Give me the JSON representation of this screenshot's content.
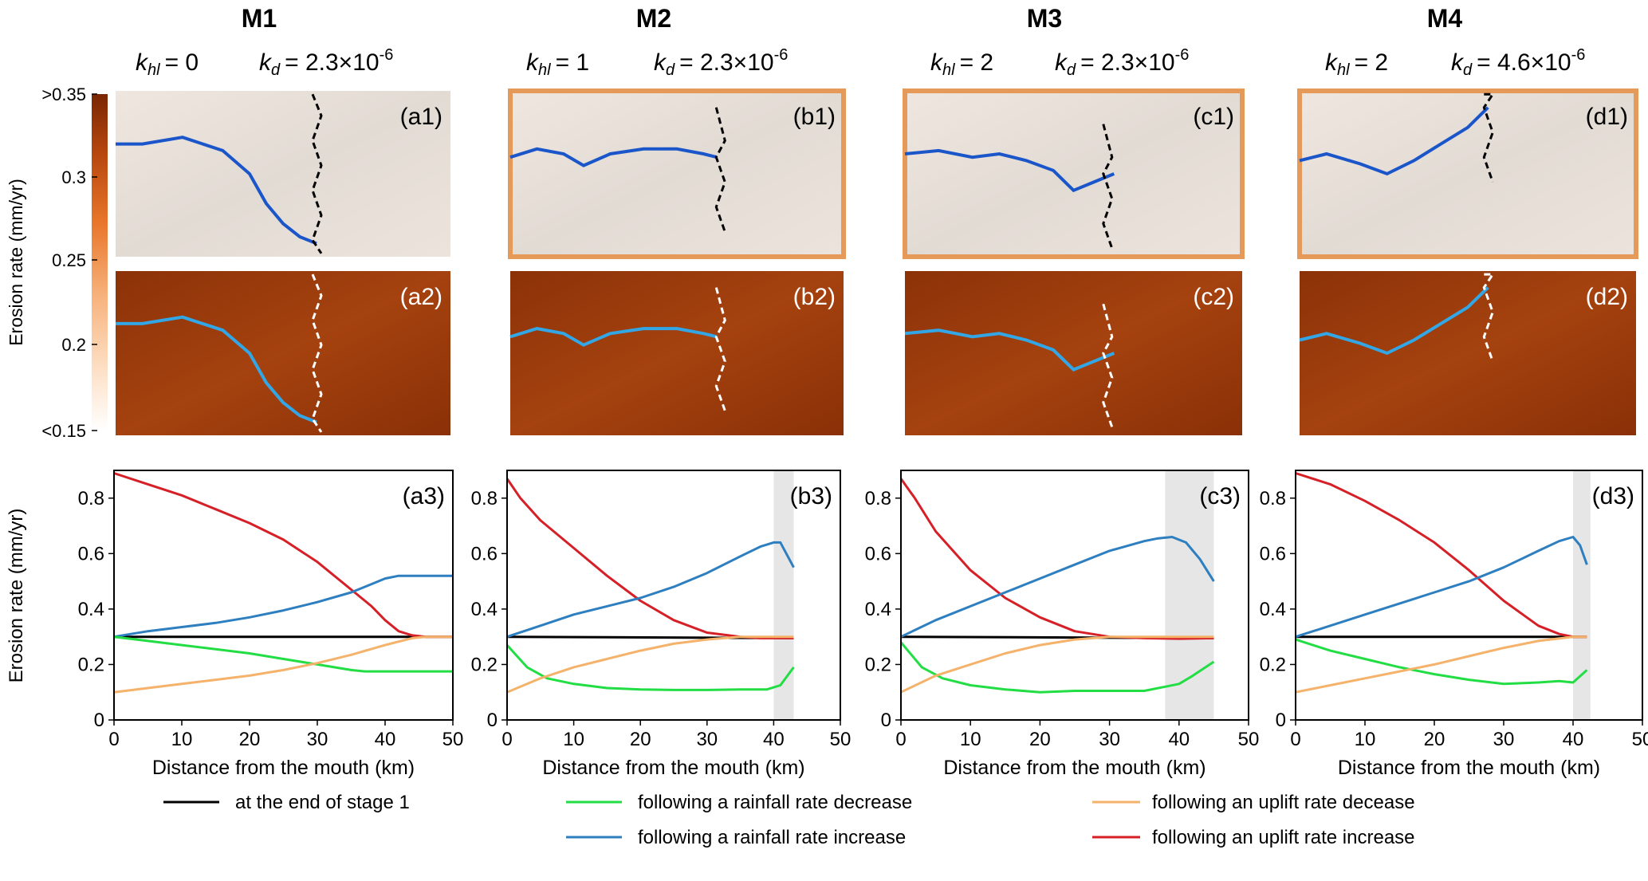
{
  "colorbar": {
    "label": "Erosion rate (mm/yr)",
    "ticks": [
      ">0.35",
      "0.3",
      "0.25",
      "0.2",
      "<0.15"
    ],
    "color_high": "#7a2604",
    "color_low": "#ffffff"
  },
  "models": [
    {
      "id": "M1",
      "khl_sym": "k",
      "khl_sub": "hl",
      "khl_val": "= 0",
      "kd_sym": "k",
      "kd_sub": "d",
      "kd_val": "= 2.3×10",
      "kd_exp": "-6",
      "labels": {
        "top": "(a1)",
        "mid": "(a2)",
        "bot": "(a3)"
      }
    },
    {
      "id": "M2",
      "khl_sym": "k",
      "khl_sub": "hl",
      "khl_val": "= 1",
      "kd_sym": "k",
      "kd_sub": "d",
      "kd_val": "= 2.3×10",
      "kd_exp": "-6",
      "labels": {
        "top": "(b1)",
        "mid": "(b2)",
        "bot": "(b3)"
      }
    },
    {
      "id": "M3",
      "khl_sym": "k",
      "khl_sub": "hl",
      "khl_val": "= 2",
      "kd_sym": "k",
      "kd_sub": "d",
      "kd_val": "= 2.3×10",
      "kd_exp": "-6",
      "labels": {
        "top": "(c1)",
        "mid": "(c2)",
        "bot": "(c3)"
      }
    },
    {
      "id": "M4",
      "khl_sym": "k",
      "khl_sub": "hl",
      "khl_val": "= 2",
      "kd_sym": "k",
      "kd_sub": "d",
      "kd_val": "= 4.6×10",
      "kd_exp": "-6",
      "labels": {
        "top": "(d1)",
        "mid": "(d2)",
        "bot": "(d3)"
      }
    }
  ],
  "legend": {
    "items": [
      {
        "key": "baseline",
        "label": "at the end of stage 1",
        "color": "#000000"
      },
      {
        "key": "rain_dec",
        "label": "following a rainfall rate decrease",
        "color": "#22dd44"
      },
      {
        "key": "uplift_dec",
        "label": "following an uplift rate decease",
        "color": "#f4b26b"
      },
      {
        "key": "rain_inc",
        "label": "following a rainfall rate increase",
        "color": "#2e7fc0"
      },
      {
        "key": "uplift_inc",
        "label": "following an uplift rate increase",
        "color": "#d62027"
      }
    ]
  },
  "chart_data": [
    {
      "type": "line",
      "panel": "(a3)",
      "xlabel": "Distance from the mouth (km)",
      "ylabel": "Erosion rate (mm/yr)",
      "xlim": [
        0,
        50
      ],
      "ylim": [
        0,
        0.9
      ],
      "xticks": [
        0,
        10,
        20,
        30,
        40,
        50
      ],
      "yticks": [
        0,
        0.2,
        0.4,
        0.6,
        0.8
      ],
      "shade": null,
      "series": [
        {
          "name": "at the end of stage 1",
          "color": "#000000",
          "x": [
            0,
            50
          ],
          "y": [
            0.3,
            0.3
          ]
        },
        {
          "name": "following an uplift rate increase",
          "color": "#d62027",
          "x": [
            0,
            5,
            10,
            15,
            20,
            25,
            30,
            35,
            38,
            40,
            42,
            44,
            46,
            50
          ],
          "y": [
            0.89,
            0.85,
            0.81,
            0.76,
            0.71,
            0.65,
            0.57,
            0.47,
            0.41,
            0.36,
            0.32,
            0.305,
            0.3,
            0.3
          ]
        },
        {
          "name": "following a rainfall rate increase",
          "color": "#2e7fc0",
          "x": [
            0,
            5,
            10,
            15,
            20,
            25,
            30,
            35,
            38,
            40,
            42,
            44,
            50
          ],
          "y": [
            0.3,
            0.32,
            0.335,
            0.35,
            0.37,
            0.395,
            0.425,
            0.46,
            0.49,
            0.51,
            0.52,
            0.52,
            0.52
          ]
        },
        {
          "name": "following a rainfall rate decrease",
          "color": "#22dd44",
          "x": [
            0,
            5,
            10,
            15,
            20,
            25,
            30,
            35,
            37,
            40,
            50
          ],
          "y": [
            0.3,
            0.285,
            0.27,
            0.255,
            0.24,
            0.22,
            0.2,
            0.18,
            0.175,
            0.175,
            0.175
          ]
        },
        {
          "name": "following an uplift rate decease",
          "color": "#f4b26b",
          "x": [
            0,
            5,
            10,
            15,
            20,
            25,
            30,
            35,
            40,
            44,
            46,
            50
          ],
          "y": [
            0.1,
            0.115,
            0.13,
            0.145,
            0.16,
            0.18,
            0.205,
            0.235,
            0.27,
            0.295,
            0.3,
            0.3
          ]
        }
      ]
    },
    {
      "type": "line",
      "panel": "(b3)",
      "xlabel": "Distance from the mouth (km)",
      "ylabel": "",
      "xlim": [
        0,
        50
      ],
      "ylim": [
        0,
        0.9
      ],
      "xticks": [
        0,
        10,
        20,
        30,
        40,
        50
      ],
      "yticks": [
        0,
        0.2,
        0.4,
        0.6,
        0.8
      ],
      "shade": [
        40,
        43
      ],
      "series": [
        {
          "name": "at the end of stage 1",
          "color": "#000000",
          "x": [
            0,
            43
          ],
          "y": [
            0.3,
            0.295
          ]
        },
        {
          "name": "following an uplift rate increase",
          "color": "#d62027",
          "x": [
            0,
            2,
            5,
            10,
            15,
            20,
            25,
            30,
            35,
            38,
            40,
            43
          ],
          "y": [
            0.87,
            0.8,
            0.72,
            0.62,
            0.52,
            0.43,
            0.36,
            0.315,
            0.3,
            0.295,
            0.295,
            0.295
          ]
        },
        {
          "name": "following a rainfall rate increase",
          "color": "#2e7fc0",
          "x": [
            0,
            5,
            10,
            15,
            20,
            25,
            30,
            35,
            38,
            40,
            41,
            43
          ],
          "y": [
            0.3,
            0.34,
            0.38,
            0.41,
            0.44,
            0.48,
            0.53,
            0.59,
            0.625,
            0.64,
            0.64,
            0.55
          ]
        },
        {
          "name": "following a rainfall rate decrease",
          "color": "#22dd44",
          "x": [
            0,
            3,
            6,
            10,
            15,
            20,
            25,
            30,
            35,
            39,
            41,
            43
          ],
          "y": [
            0.27,
            0.19,
            0.15,
            0.13,
            0.115,
            0.11,
            0.108,
            0.108,
            0.11,
            0.11,
            0.125,
            0.19
          ]
        },
        {
          "name": "following an uplift rate decease",
          "color": "#f4b26b",
          "x": [
            0,
            5,
            10,
            15,
            20,
            25,
            30,
            35,
            40,
            43
          ],
          "y": [
            0.1,
            0.15,
            0.19,
            0.22,
            0.25,
            0.275,
            0.29,
            0.3,
            0.3,
            0.3
          ]
        }
      ]
    },
    {
      "type": "line",
      "panel": "(c3)",
      "xlabel": "Distance from the mouth (km)",
      "ylabel": "",
      "xlim": [
        0,
        50
      ],
      "ylim": [
        0,
        0.9
      ],
      "xticks": [
        0,
        10,
        20,
        30,
        40,
        50
      ],
      "yticks": [
        0,
        0.2,
        0.4,
        0.6,
        0.8
      ],
      "shade": [
        38,
        45
      ],
      "series": [
        {
          "name": "at the end of stage 1",
          "color": "#000000",
          "x": [
            0,
            45
          ],
          "y": [
            0.3,
            0.295
          ]
        },
        {
          "name": "following an uplift rate increase",
          "color": "#d62027",
          "x": [
            0,
            2,
            5,
            10,
            15,
            20,
            25,
            30,
            35,
            40,
            45
          ],
          "y": [
            0.87,
            0.8,
            0.68,
            0.54,
            0.44,
            0.37,
            0.32,
            0.3,
            0.295,
            0.293,
            0.295
          ]
        },
        {
          "name": "following a rainfall rate increase",
          "color": "#2e7fc0",
          "x": [
            0,
            5,
            10,
            15,
            20,
            25,
            30,
            35,
            37,
            39,
            41,
            43,
            45
          ],
          "y": [
            0.3,
            0.36,
            0.41,
            0.46,
            0.51,
            0.56,
            0.61,
            0.645,
            0.655,
            0.66,
            0.64,
            0.58,
            0.5
          ]
        },
        {
          "name": "following a rainfall rate decrease",
          "color": "#22dd44",
          "x": [
            0,
            3,
            6,
            10,
            15,
            20,
            25,
            30,
            35,
            38,
            40,
            42,
            45
          ],
          "y": [
            0.28,
            0.19,
            0.15,
            0.125,
            0.11,
            0.1,
            0.105,
            0.105,
            0.105,
            0.12,
            0.13,
            0.16,
            0.21
          ]
        },
        {
          "name": "following an uplift rate decease",
          "color": "#f4b26b",
          "x": [
            0,
            5,
            10,
            15,
            20,
            25,
            30,
            35,
            40,
            45
          ],
          "y": [
            0.1,
            0.16,
            0.2,
            0.24,
            0.27,
            0.29,
            0.3,
            0.3,
            0.3,
            0.3
          ]
        }
      ]
    },
    {
      "type": "line",
      "panel": "(d3)",
      "xlabel": "Distance from the mouth (km)",
      "ylabel": "",
      "xlim": [
        0,
        50
      ],
      "ylim": [
        0,
        0.9
      ],
      "xticks": [
        0,
        10,
        20,
        30,
        40,
        50
      ],
      "yticks": [
        0,
        0.2,
        0.4,
        0.6,
        0.8
      ],
      "shade": [
        40,
        42.5
      ],
      "series": [
        {
          "name": "at the end of stage 1",
          "color": "#000000",
          "x": [
            0,
            42
          ],
          "y": [
            0.3,
            0.3
          ]
        },
        {
          "name": "following an uplift rate increase",
          "color": "#d62027",
          "x": [
            0,
            5,
            10,
            15,
            20,
            25,
            30,
            35,
            38,
            40,
            42
          ],
          "y": [
            0.89,
            0.85,
            0.79,
            0.72,
            0.64,
            0.54,
            0.43,
            0.34,
            0.31,
            0.3,
            0.3
          ]
        },
        {
          "name": "following a rainfall rate increase",
          "color": "#2e7fc0",
          "x": [
            0,
            5,
            10,
            15,
            20,
            25,
            30,
            35,
            38,
            40,
            41,
            42
          ],
          "y": [
            0.3,
            0.34,
            0.38,
            0.42,
            0.46,
            0.5,
            0.55,
            0.61,
            0.645,
            0.66,
            0.63,
            0.56
          ]
        },
        {
          "name": "following a rainfall rate decrease",
          "color": "#22dd44",
          "x": [
            0,
            5,
            10,
            15,
            20,
            25,
            30,
            35,
            38,
            40,
            42
          ],
          "y": [
            0.29,
            0.25,
            0.22,
            0.19,
            0.165,
            0.145,
            0.13,
            0.135,
            0.14,
            0.135,
            0.18
          ]
        },
        {
          "name": "following an uplift rate decease",
          "color": "#f4b26b",
          "x": [
            0,
            5,
            10,
            15,
            20,
            25,
            30,
            35,
            40,
            42
          ],
          "y": [
            0.1,
            0.125,
            0.15,
            0.175,
            0.2,
            0.23,
            0.26,
            0.285,
            0.3,
            0.3
          ]
        }
      ]
    }
  ]
}
